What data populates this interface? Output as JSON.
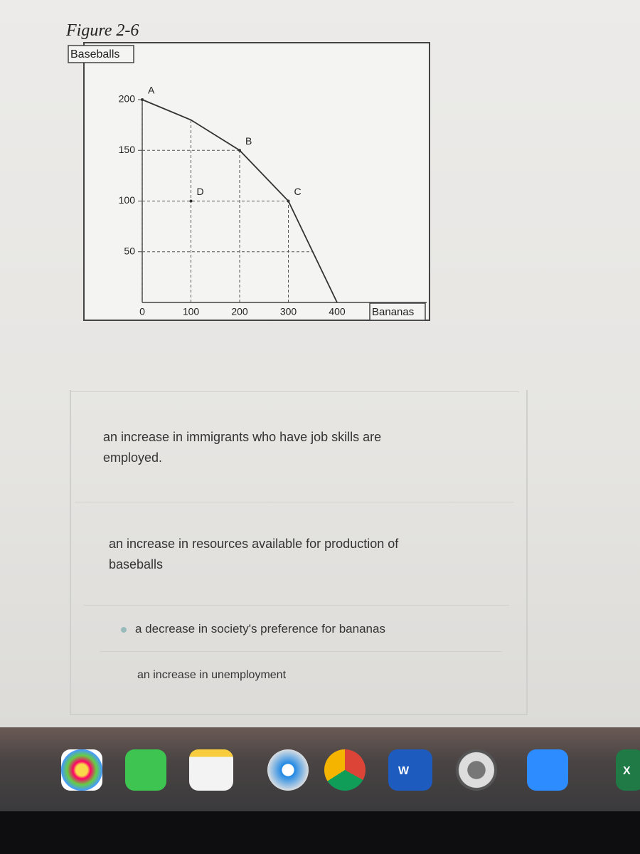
{
  "figure_title": "Figure 2-6",
  "chart_data": {
    "type": "line",
    "y_label": "Baseballs",
    "x_label": "Bananas",
    "x": [
      0,
      100,
      200,
      300,
      400
    ],
    "values": [
      200,
      180,
      150,
      100,
      0
    ],
    "color": "#333333",
    "points": [
      {
        "label": "A",
        "x": 0,
        "y": 200
      },
      {
        "label": "B",
        "x": 200,
        "y": 150
      },
      {
        "label": "C",
        "x": 300,
        "y": 100
      },
      {
        "label": "D",
        "x": 100,
        "y": 100
      }
    ],
    "xlim": [
      0,
      400
    ],
    "ylim": [
      0,
      200
    ],
    "xticks": [
      0,
      100,
      200,
      300,
      400
    ],
    "yticks": [
      50,
      100,
      150,
      200
    ],
    "grid": true
  },
  "options": [
    {
      "text": "an increase in immigrants who have job skills are employed.",
      "selected": false
    },
    {
      "text": "an increase in resources available for production of baseballs",
      "selected": false
    },
    {
      "text": "a decrease in society's preference for bananas",
      "selected": true
    },
    {
      "text": "an increase in unemployment",
      "selected": false
    }
  ],
  "dock": {
    "labels": [
      "W",
      "X"
    ]
  }
}
